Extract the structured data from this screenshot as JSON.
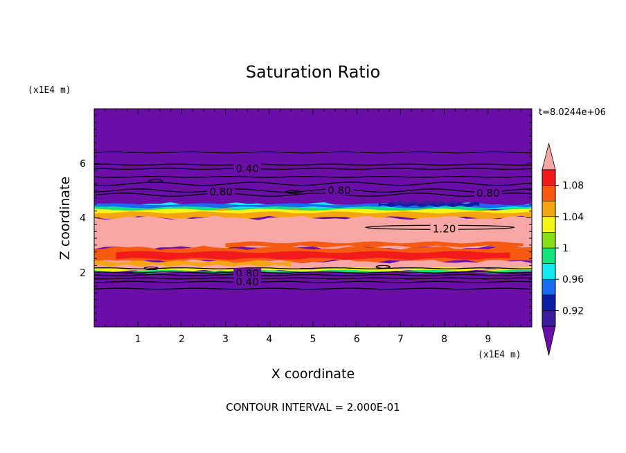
{
  "chart_data": {
    "type": "contour",
    "title": "Saturation Ratio",
    "xlabel": "X coordinate",
    "ylabel": "Z coordinate",
    "x_unit": "(x1E4 m)",
    "y_unit": "(x1E4 m)",
    "time_label": "t=8.0244e+06",
    "footer": "CONTOUR INTERVAL = 2.000E-01",
    "xlim": [
      0,
      10
    ],
    "ylim": [
      0,
      8
    ],
    "x_ticks": [
      "1",
      "2",
      "3",
      "4",
      "5",
      "6",
      "7",
      "8",
      "9"
    ],
    "y_ticks": [
      "2",
      "4",
      "6"
    ],
    "colorbar": {
      "levels": [
        0.9,
        0.92,
        0.94,
        0.96,
        0.98,
        1.0,
        1.02,
        1.04,
        1.06,
        1.08,
        1.1
      ],
      "tick_labels": [
        "0.92",
        "0.96",
        "1",
        "1.04",
        "1.08"
      ],
      "colors": [
        "#6b0ea8",
        "#3a1c9e",
        "#0a1fa4",
        "#1a6bf0",
        "#12e8f0",
        "#14e27a",
        "#86dd18",
        "#f6f51a",
        "#f5a512",
        "#f55a10",
        "#f21a1a",
        "#f8a6a6"
      ],
      "under_color": "#6b0ea8",
      "over_color": "#f8a6a6"
    },
    "bands": [
      {
        "z_bottom": 4.5,
        "z_top": 8.0,
        "value_class": "below 0.90",
        "color": "#6b0ea8"
      },
      {
        "z_bottom": 4.3,
        "z_top": 4.5,
        "value_class": "0.92-1.00",
        "color": "#12e8f0"
      },
      {
        "z_bottom": 4.0,
        "z_top": 4.3,
        "value_class": "1.04-1.08",
        "color": "#f5a512"
      },
      {
        "z_bottom": 2.9,
        "z_top": 4.0,
        "value_class": "above 1.10",
        "color": "#f8a6a6"
      },
      {
        "z_bottom": 2.4,
        "z_top": 2.9,
        "value_class": "1.06-1.10",
        "color": "#f55a10"
      },
      {
        "z_bottom": 2.1,
        "z_top": 2.4,
        "value_class": "above 1.10",
        "color": "#f8a6a6"
      },
      {
        "z_bottom": 0.0,
        "z_top": 2.0,
        "value_class": "below 0.90",
        "color": "#6b0ea8"
      }
    ],
    "contour_labels": [
      {
        "text": "0.40",
        "x": 3.5,
        "z": 5.8
      },
      {
        "text": "0.80",
        "x": 2.9,
        "z": 4.95
      },
      {
        "text": "0.80",
        "x": 5.6,
        "z": 5.0
      },
      {
        "text": "0.80",
        "x": 9.0,
        "z": 4.9
      },
      {
        "text": "1.20",
        "x": 8.0,
        "z": 3.6
      },
      {
        "text": "0.80",
        "x": 3.5,
        "z": 1.95
      },
      {
        "text": "0.40",
        "x": 3.5,
        "z": 1.65
      }
    ]
  }
}
